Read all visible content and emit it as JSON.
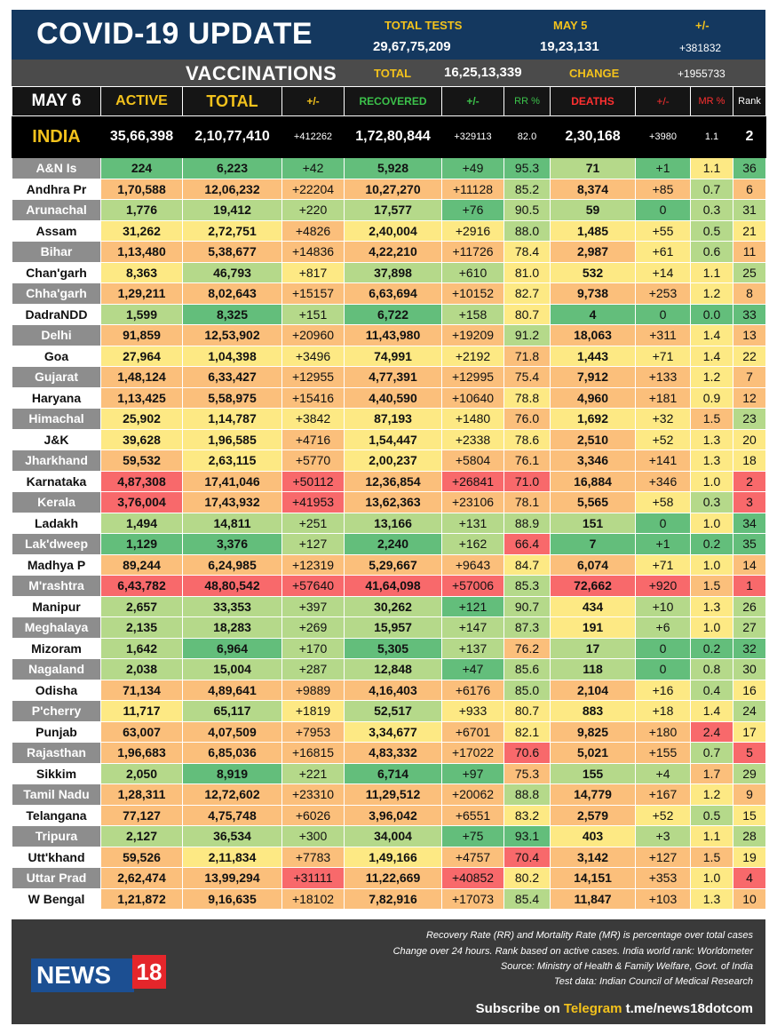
{
  "header": {
    "title": "COVID-19 UPDATE",
    "total_tests_label": "TOTAL TESTS",
    "total_tests": "29,67,75,209",
    "may5_label": "MAY 5",
    "may5_value": "19,23,131",
    "change_label": "+/-",
    "change_value": "+381832",
    "vaccinations_label": "VACCINATIONS",
    "vacc_total_label": "TOTAL",
    "vacc_total": "16,25,13,339",
    "vacc_change_label": "CHANGE",
    "vacc_change": "+1955733"
  },
  "columns": {
    "date": "MAY 6",
    "active": "ACTIVE",
    "total": "TOTAL",
    "total_change": "+/-",
    "recovered": "RECOVERED",
    "recovered_change": "+/-",
    "rr": "RR %",
    "deaths": "DEATHS",
    "deaths_change": "+/-",
    "mr": "MR %",
    "rank": "Rank"
  },
  "india": {
    "name": "INDIA",
    "active": "35,66,398",
    "total": "2,10,77,410",
    "total_change": "+412262",
    "recovered": "1,72,80,844",
    "recovered_change": "+329113",
    "rr": "82.0",
    "deaths": "2,30,168",
    "deaths_change": "+3980",
    "mr": "1.1",
    "rank": "2"
  },
  "colors": {
    "green": "#63be7b",
    "lightgreen": "#b5d98a",
    "yellow": "#fde984",
    "orange": "#fbbf7b",
    "salmon": "#f8a07a",
    "red": "#f8696b"
  },
  "states": [
    {
      "name": "A&N Is",
      "active": "224",
      "total": "6,223",
      "tc": "+42",
      "recovered": "5,928",
      "rc": "+49",
      "rr": "95.3",
      "deaths": "71",
      "dc": "+1",
      "mr": "1.1",
      "rank": "36"
    },
    {
      "name": "Andhra Pr",
      "active": "1,70,588",
      "total": "12,06,232",
      "tc": "+22204",
      "recovered": "10,27,270",
      "rc": "+11128",
      "rr": "85.2",
      "deaths": "8,374",
      "dc": "+85",
      "mr": "0.7",
      "rank": "6"
    },
    {
      "name": "Arunachal",
      "active": "1,776",
      "total": "19,412",
      "tc": "+220",
      "recovered": "17,577",
      "rc": "+76",
      "rr": "90.5",
      "deaths": "59",
      "dc": "0",
      "mr": "0.3",
      "rank": "31"
    },
    {
      "name": "Assam",
      "active": "31,262",
      "total": "2,72,751",
      "tc": "+4826",
      "recovered": "2,40,004",
      "rc": "+2916",
      "rr": "88.0",
      "deaths": "1,485",
      "dc": "+55",
      "mr": "0.5",
      "rank": "21"
    },
    {
      "name": "Bihar",
      "active": "1,13,480",
      "total": "5,38,677",
      "tc": "+14836",
      "recovered": "4,22,210",
      "rc": "+11726",
      "rr": "78.4",
      "deaths": "2,987",
      "dc": "+61",
      "mr": "0.6",
      "rank": "11"
    },
    {
      "name": "Chan'garh",
      "active": "8,363",
      "total": "46,793",
      "tc": "+817",
      "recovered": "37,898",
      "rc": "+610",
      "rr": "81.0",
      "deaths": "532",
      "dc": "+14",
      "mr": "1.1",
      "rank": "25"
    },
    {
      "name": "Chha'garh",
      "active": "1,29,211",
      "total": "8,02,643",
      "tc": "+15157",
      "recovered": "6,63,694",
      "rc": "+10152",
      "rr": "82.7",
      "deaths": "9,738",
      "dc": "+253",
      "mr": "1.2",
      "rank": "8"
    },
    {
      "name": "DadraNDD",
      "active": "1,599",
      "total": "8,325",
      "tc": "+151",
      "recovered": "6,722",
      "rc": "+158",
      "rr": "80.7",
      "deaths": "4",
      "dc": "0",
      "mr": "0.0",
      "rank": "33"
    },
    {
      "name": "Delhi",
      "active": "91,859",
      "total": "12,53,902",
      "tc": "+20960",
      "recovered": "11,43,980",
      "rc": "+19209",
      "rr": "91.2",
      "deaths": "18,063",
      "dc": "+311",
      "mr": "1.4",
      "rank": "13"
    },
    {
      "name": "Goa",
      "active": "27,964",
      "total": "1,04,398",
      "tc": "+3496",
      "recovered": "74,991",
      "rc": "+2192",
      "rr": "71.8",
      "deaths": "1,443",
      "dc": "+71",
      "mr": "1.4",
      "rank": "22"
    },
    {
      "name": "Gujarat",
      "active": "1,48,124",
      "total": "6,33,427",
      "tc": "+12955",
      "recovered": "4,77,391",
      "rc": "+12995",
      "rr": "75.4",
      "deaths": "7,912",
      "dc": "+133",
      "mr": "1.2",
      "rank": "7"
    },
    {
      "name": "Haryana",
      "active": "1,13,425",
      "total": "5,58,975",
      "tc": "+15416",
      "recovered": "4,40,590",
      "rc": "+10640",
      "rr": "78.8",
      "deaths": "4,960",
      "dc": "+181",
      "mr": "0.9",
      "rank": "12"
    },
    {
      "name": "Himachal",
      "active": "25,902",
      "total": "1,14,787",
      "tc": "+3842",
      "recovered": "87,193",
      "rc": "+1480",
      "rr": "76.0",
      "deaths": "1,692",
      "dc": "+32",
      "mr": "1.5",
      "rank": "23"
    },
    {
      "name": "J&K",
      "active": "39,628",
      "total": "1,96,585",
      "tc": "+4716",
      "recovered": "1,54,447",
      "rc": "+2338",
      "rr": "78.6",
      "deaths": "2,510",
      "dc": "+52",
      "mr": "1.3",
      "rank": "20"
    },
    {
      "name": "Jharkhand",
      "active": "59,532",
      "total": "2,63,115",
      "tc": "+5770",
      "recovered": "2,00,237",
      "rc": "+5804",
      "rr": "76.1",
      "deaths": "3,346",
      "dc": "+141",
      "mr": "1.3",
      "rank": "18"
    },
    {
      "name": "Karnataka",
      "active": "4,87,308",
      "total": "17,41,046",
      "tc": "+50112",
      "recovered": "12,36,854",
      "rc": "+26841",
      "rr": "71.0",
      "deaths": "16,884",
      "dc": "+346",
      "mr": "1.0",
      "rank": "2"
    },
    {
      "name": "Kerala",
      "active": "3,76,004",
      "total": "17,43,932",
      "tc": "+41953",
      "recovered": "13,62,363",
      "rc": "+23106",
      "rr": "78.1",
      "deaths": "5,565",
      "dc": "+58",
      "mr": "0.3",
      "rank": "3"
    },
    {
      "name": "Ladakh",
      "active": "1,494",
      "total": "14,811",
      "tc": "+251",
      "recovered": "13,166",
      "rc": "+131",
      "rr": "88.9",
      "deaths": "151",
      "dc": "0",
      "mr": "1.0",
      "rank": "34"
    },
    {
      "name": "Lak'dweep",
      "active": "1,129",
      "total": "3,376",
      "tc": "+127",
      "recovered": "2,240",
      "rc": "+162",
      "rr": "66.4",
      "deaths": "7",
      "dc": "+1",
      "mr": "0.2",
      "rank": "35"
    },
    {
      "name": "Madhya P",
      "active": "89,244",
      "total": "6,24,985",
      "tc": "+12319",
      "recovered": "5,29,667",
      "rc": "+9643",
      "rr": "84.7",
      "deaths": "6,074",
      "dc": "+71",
      "mr": "1.0",
      "rank": "14"
    },
    {
      "name": "M'rashtra",
      "active": "6,43,782",
      "total": "48,80,542",
      "tc": "+57640",
      "recovered": "41,64,098",
      "rc": "+57006",
      "rr": "85.3",
      "deaths": "72,662",
      "dc": "+920",
      "mr": "1.5",
      "rank": "1"
    },
    {
      "name": "Manipur",
      "active": "2,657",
      "total": "33,353",
      "tc": "+397",
      "recovered": "30,262",
      "rc": "+121",
      "rr": "90.7",
      "deaths": "434",
      "dc": "+10",
      "mr": "1.3",
      "rank": "26"
    },
    {
      "name": "Meghalaya",
      "active": "2,135",
      "total": "18,283",
      "tc": "+269",
      "recovered": "15,957",
      "rc": "+147",
      "rr": "87.3",
      "deaths": "191",
      "dc": "+6",
      "mr": "1.0",
      "rank": "27"
    },
    {
      "name": "Mizoram",
      "active": "1,642",
      "total": "6,964",
      "tc": "+170",
      "recovered": "5,305",
      "rc": "+137",
      "rr": "76.2",
      "deaths": "17",
      "dc": "0",
      "mr": "0.2",
      "rank": "32"
    },
    {
      "name": "Nagaland",
      "active": "2,038",
      "total": "15,004",
      "tc": "+287",
      "recovered": "12,848",
      "rc": "+47",
      "rr": "85.6",
      "deaths": "118",
      "dc": "0",
      "mr": "0.8",
      "rank": "30"
    },
    {
      "name": "Odisha",
      "active": "71,134",
      "total": "4,89,641",
      "tc": "+9889",
      "recovered": "4,16,403",
      "rc": "+6176",
      "rr": "85.0",
      "deaths": "2,104",
      "dc": "+16",
      "mr": "0.4",
      "rank": "16"
    },
    {
      "name": "P'cherry",
      "active": "11,717",
      "total": "65,117",
      "tc": "+1819",
      "recovered": "52,517",
      "rc": "+933",
      "rr": "80.7",
      "deaths": "883",
      "dc": "+18",
      "mr": "1.4",
      "rank": "24"
    },
    {
      "name": "Punjab",
      "active": "63,007",
      "total": "4,07,509",
      "tc": "+7953",
      "recovered": "3,34,677",
      "rc": "+6701",
      "rr": "82.1",
      "deaths": "9,825",
      "dc": "+180",
      "mr": "2.4",
      "rank": "17"
    },
    {
      "name": "Rajasthan",
      "active": "1,96,683",
      "total": "6,85,036",
      "tc": "+16815",
      "recovered": "4,83,332",
      "rc": "+17022",
      "rr": "70.6",
      "deaths": "5,021",
      "dc": "+155",
      "mr": "0.7",
      "rank": "5"
    },
    {
      "name": "Sikkim",
      "active": "2,050",
      "total": "8,919",
      "tc": "+221",
      "recovered": "6,714",
      "rc": "+97",
      "rr": "75.3",
      "deaths": "155",
      "dc": "+4",
      "mr": "1.7",
      "rank": "29"
    },
    {
      "name": "Tamil Nadu",
      "active": "1,28,311",
      "total": "12,72,602",
      "tc": "+23310",
      "recovered": "11,29,512",
      "rc": "+20062",
      "rr": "88.8",
      "deaths": "14,779",
      "dc": "+167",
      "mr": "1.2",
      "rank": "9"
    },
    {
      "name": "Telangana",
      "active": "77,127",
      "total": "4,75,748",
      "tc": "+6026",
      "recovered": "3,96,042",
      "rc": "+6551",
      "rr": "83.2",
      "deaths": "2,579",
      "dc": "+52",
      "mr": "0.5",
      "rank": "15"
    },
    {
      "name": "Tripura",
      "active": "2,127",
      "total": "36,534",
      "tc": "+300",
      "recovered": "34,004",
      "rc": "+75",
      "rr": "93.1",
      "deaths": "403",
      "dc": "+3",
      "mr": "1.1",
      "rank": "28"
    },
    {
      "name": "Utt'khand",
      "active": "59,526",
      "total": "2,11,834",
      "tc": "+7783",
      "recovered": "1,49,166",
      "rc": "+4757",
      "rr": "70.4",
      "deaths": "3,142",
      "dc": "+127",
      "mr": "1.5",
      "rank": "19"
    },
    {
      "name": "Uttar Prad",
      "active": "2,62,474",
      "total": "13,99,294",
      "tc": "+31111",
      "recovered": "11,22,669",
      "rc": "+40852",
      "rr": "80.2",
      "deaths": "14,151",
      "dc": "+353",
      "mr": "1.0",
      "rank": "4"
    },
    {
      "name": "W Bengal",
      "active": "1,21,872",
      "total": "9,16,635",
      "tc": "+18102",
      "recovered": "7,82,916",
      "rc": "+17073",
      "rr": "85.4",
      "deaths": "11,847",
      "dc": "+103",
      "mr": "1.3",
      "rank": "10"
    }
  ],
  "footer": {
    "logo_text": "NEWS",
    "logo_number": "18",
    "note1": "Recovery Rate (RR) and Mortality Rate (MR) is percentage over total cases",
    "note2": "Change over 24 hours. Rank based on active cases. India world rank: Worldometer",
    "note3": "Source: Ministry of Health & Family Welfare, Govt. of India",
    "note4": "Test data: Indian Council of Medical Research",
    "subscribe_prefix": "Subscribe on",
    "subscribe_platform": "Telegram",
    "subscribe_link": "t.me/news18dotcom"
  }
}
